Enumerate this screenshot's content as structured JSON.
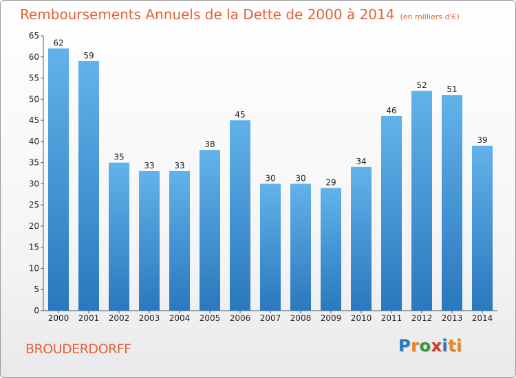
{
  "header": {
    "title": "Remboursements Annuels de la Dette de 2000 à 2014",
    "unit": "(en milliers d'€)"
  },
  "footer": {
    "commune": "BROUDERDORFF",
    "logo_letters": [
      "P",
      "r",
      "o",
      "x",
      "i",
      "ti"
    ]
  },
  "colors": {
    "bar_top": "#62b2ea",
    "bar_bottom": "#2a78bd",
    "title": "#e0623a"
  },
  "chart_data": {
    "type": "bar",
    "title": "Remboursements Annuels de la Dette de 2000 à 2014",
    "xlabel": "",
    "ylabel": "",
    "categories": [
      "2000",
      "2001",
      "2002",
      "2003",
      "2004",
      "2005",
      "2006",
      "2007",
      "2008",
      "2009",
      "2010",
      "2011",
      "2012",
      "2013",
      "2014"
    ],
    "values": [
      62,
      59,
      35,
      33,
      33,
      38,
      45,
      30,
      30,
      29,
      34,
      46,
      52,
      51,
      39
    ],
    "ylim": [
      0,
      65
    ],
    "yticks": [
      0,
      5,
      10,
      15,
      20,
      25,
      30,
      35,
      40,
      45,
      50,
      55,
      60,
      65
    ],
    "grid": false,
    "data_labels": true
  }
}
